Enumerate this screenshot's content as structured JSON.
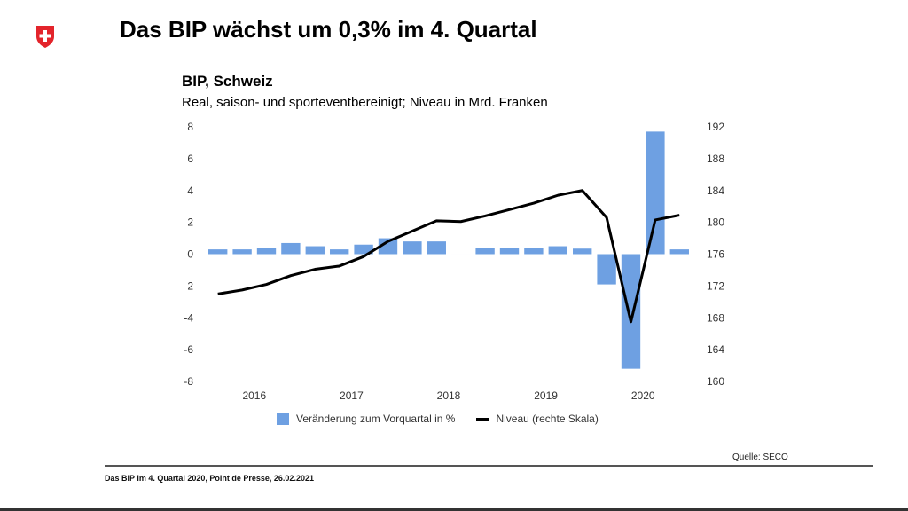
{
  "header": {
    "title": "Das BIP wächst um 0,3% im 4. Quartal",
    "logo_icon": "swiss-cross-shield-icon"
  },
  "chart_data": {
    "type": "bar",
    "title": "BIP, Schweiz",
    "subtitle": "Real, saison- und sporteventbereinigt; Niveau in Mrd. Franken",
    "categories": [
      "2016Q1",
      "2016Q2",
      "2016Q3",
      "2016Q4",
      "2017Q1",
      "2017Q2",
      "2017Q3",
      "2017Q4",
      "2018Q1",
      "2018Q2",
      "2018Q3",
      "2018Q4",
      "2019Q1",
      "2019Q2",
      "2019Q3",
      "2019Q4",
      "2020Q1",
      "2020Q2",
      "2020Q3",
      "2020Q4"
    ],
    "x_tick_labels": [
      "2016",
      "2017",
      "2018",
      "2019",
      "2020"
    ],
    "series": [
      {
        "name": "Veränderung zum Vorquartal in %",
        "type": "bar",
        "axis": "left",
        "color": "#6ea0e2",
        "values": [
          0.3,
          0.3,
          0.4,
          0.7,
          0.5,
          0.3,
          0.6,
          1.0,
          0.8,
          0.8,
          0.0,
          0.4,
          0.4,
          0.4,
          0.5,
          0.35,
          -1.9,
          -7.2,
          7.7,
          0.3
        ]
      },
      {
        "name": "Niveau (rechte Skala)",
        "type": "line",
        "axis": "right",
        "color": "#000000",
        "values": [
          171.0,
          171.5,
          172.2,
          173.3,
          174.1,
          174.5,
          175.7,
          177.6,
          178.9,
          180.2,
          180.1,
          180.8,
          181.6,
          182.4,
          183.4,
          184.0,
          180.6,
          167.5,
          180.3,
          180.9
        ]
      }
    ],
    "y_left": {
      "ylim": [
        -8,
        8
      ],
      "ticks": [
        8,
        6,
        4,
        2,
        0,
        -2,
        -4,
        -6,
        -8
      ]
    },
    "y_right": {
      "ylim": [
        160,
        192
      ],
      "ticks": [
        192,
        188,
        184,
        180,
        176,
        172,
        168,
        164,
        160
      ]
    },
    "xlabel": "",
    "ylabel": "",
    "grid": false,
    "legend_position": "bottom"
  },
  "legend": {
    "bar_label": "Veränderung zum Vorquartal in %",
    "line_label": "Niveau (rechte Skala)"
  },
  "source": "Quelle: SECO",
  "footer": "Das BIP im 4. Quartal 2020, Point de Presse, 26.02.2021"
}
